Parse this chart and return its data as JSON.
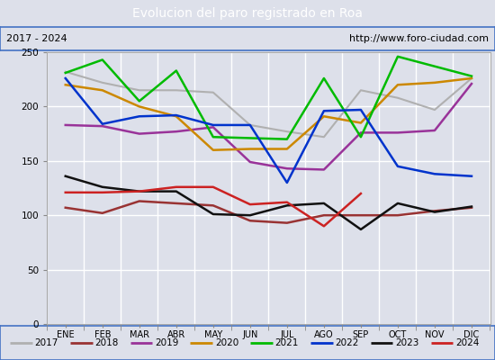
{
  "title": "Evolucion del paro registrado en Roa",
  "title_color": "#ffffff",
  "title_bg_color": "#4d7ebf",
  "subtitle_left": "2017 - 2024",
  "subtitle_right": "http://www.foro-ciudad.com",
  "months": [
    "ENE",
    "FEB",
    "MAR",
    "ABR",
    "MAY",
    "JUN",
    "JUL",
    "AGO",
    "SEP",
    "OCT",
    "NOV",
    "DIC"
  ],
  "ylim": [
    0,
    250
  ],
  "yticks": [
    0,
    50,
    100,
    150,
    200,
    250
  ],
  "series": {
    "2017": {
      "color": "#b0b0b0",
      "data": [
        232,
        222,
        215,
        215,
        213,
        183,
        177,
        172,
        215,
        208,
        197,
        226
      ]
    },
    "2018": {
      "color": "#993333",
      "data": [
        107,
        102,
        113,
        111,
        109,
        95,
        93,
        100,
        100,
        100,
        104,
        107
      ]
    },
    "2019": {
      "color": "#993399",
      "data": [
        183,
        182,
        175,
        177,
        181,
        149,
        143,
        142,
        176,
        176,
        178,
        221
      ]
    },
    "2020": {
      "color": "#cc8800",
      "data": [
        220,
        215,
        200,
        191,
        160,
        161,
        161,
        191,
        185,
        220,
        222,
        226
      ]
    },
    "2021": {
      "color": "#00bb00",
      "data": [
        231,
        243,
        205,
        233,
        172,
        171,
        170,
        226,
        172,
        246,
        237,
        228
      ]
    },
    "2022": {
      "color": "#0033cc",
      "data": [
        226,
        184,
        191,
        192,
        183,
        183,
        130,
        196,
        197,
        145,
        138,
        136
      ]
    },
    "2023": {
      "color": "#111111",
      "data": [
        136,
        126,
        122,
        122,
        101,
        100,
        109,
        111,
        87,
        111,
        103,
        108
      ]
    },
    "2024": {
      "color": "#cc2222",
      "data": [
        121,
        121,
        122,
        126,
        126,
        110,
        112,
        90,
        120,
        null,
        null,
        null
      ]
    }
  },
  "bg_color": "#dde0ea",
  "plot_bg_color": "#dde0ea",
  "grid_color": "#ffffff",
  "border_color": "#4472c4",
  "figwidth": 5.5,
  "figheight": 4.0,
  "dpi": 100
}
